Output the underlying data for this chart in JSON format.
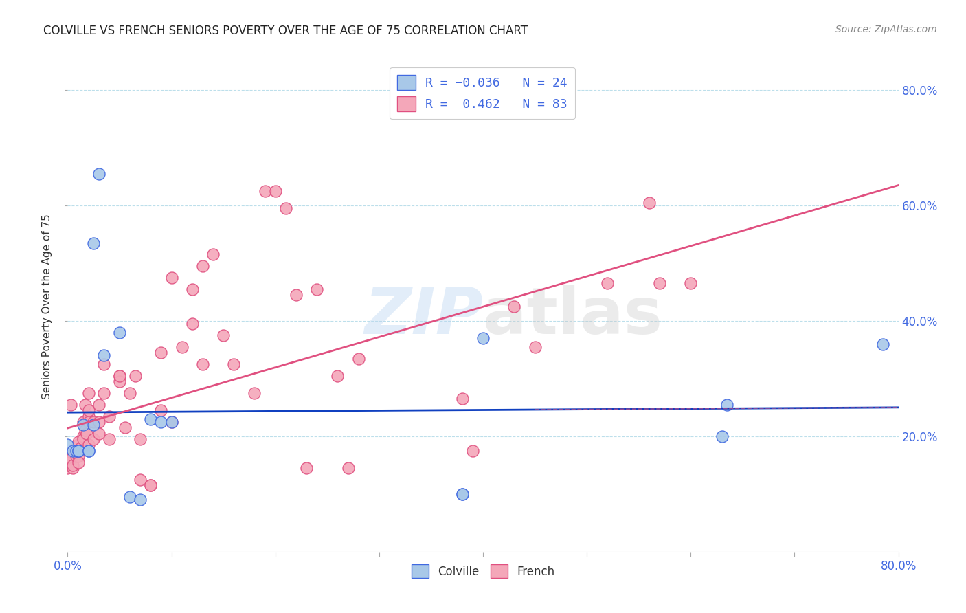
{
  "title": "COLVILLE VS FRENCH SENIORS POVERTY OVER THE AGE OF 75 CORRELATION CHART",
  "source": "Source: ZipAtlas.com",
  "ylabel": "Seniors Poverty Over the Age of 75",
  "colville_color": "#a8c8e8",
  "french_color": "#f4a7b9",
  "colville_edge_color": "#4169e1",
  "french_edge_color": "#e05080",
  "colville_line_color": "#1040c0",
  "french_line_color": "#e05080",
  "colville_R": -0.036,
  "colville_N": 24,
  "french_R": 0.462,
  "french_N": 83,
  "xlim": [
    0.0,
    0.8
  ],
  "ylim": [
    0.0,
    0.85
  ],
  "yticks": [
    0.2,
    0.4,
    0.6,
    0.8
  ],
  "xtick_positions": [
    0.0,
    0.1,
    0.2,
    0.3,
    0.4,
    0.5,
    0.6,
    0.7,
    0.8
  ],
  "colville_x": [
    0.0,
    0.005,
    0.008,
    0.01,
    0.01,
    0.015,
    0.02,
    0.02,
    0.025,
    0.025,
    0.03,
    0.035,
    0.05,
    0.06,
    0.07,
    0.08,
    0.09,
    0.1,
    0.38,
    0.38,
    0.4,
    0.63,
    0.635,
    0.785
  ],
  "colville_y": [
    0.185,
    0.175,
    0.175,
    0.175,
    0.175,
    0.22,
    0.175,
    0.175,
    0.535,
    0.22,
    0.655,
    0.34,
    0.38,
    0.095,
    0.09,
    0.23,
    0.225,
    0.225,
    0.1,
    0.1,
    0.37,
    0.2,
    0.255,
    0.36
  ],
  "french_x": [
    0.0,
    0.0,
    0.0,
    0.0,
    0.0,
    0.0,
    0.0,
    0.0,
    0.003,
    0.003,
    0.005,
    0.005,
    0.007,
    0.007,
    0.008,
    0.008,
    0.009,
    0.01,
    0.01,
    0.01,
    0.01,
    0.01,
    0.012,
    0.015,
    0.015,
    0.015,
    0.017,
    0.017,
    0.018,
    0.02,
    0.02,
    0.02,
    0.02,
    0.02,
    0.025,
    0.025,
    0.03,
    0.03,
    0.03,
    0.035,
    0.035,
    0.04,
    0.04,
    0.05,
    0.05,
    0.05,
    0.055,
    0.06,
    0.065,
    0.07,
    0.07,
    0.08,
    0.08,
    0.09,
    0.09,
    0.1,
    0.1,
    0.11,
    0.12,
    0.12,
    0.13,
    0.13,
    0.14,
    0.15,
    0.16,
    0.18,
    0.19,
    0.2,
    0.21,
    0.22,
    0.23,
    0.24,
    0.26,
    0.27,
    0.28,
    0.38,
    0.39,
    0.43,
    0.45,
    0.52,
    0.56,
    0.57,
    0.6
  ],
  "french_y": [
    0.155,
    0.16,
    0.145,
    0.15,
    0.17,
    0.17,
    0.16,
    0.155,
    0.255,
    0.16,
    0.145,
    0.15,
    0.175,
    0.175,
    0.18,
    0.165,
    0.175,
    0.175,
    0.185,
    0.165,
    0.19,
    0.155,
    0.18,
    0.2,
    0.195,
    0.225,
    0.21,
    0.255,
    0.205,
    0.185,
    0.235,
    0.245,
    0.275,
    0.225,
    0.195,
    0.225,
    0.225,
    0.255,
    0.205,
    0.325,
    0.275,
    0.195,
    0.235,
    0.305,
    0.295,
    0.305,
    0.215,
    0.275,
    0.305,
    0.125,
    0.195,
    0.115,
    0.115,
    0.245,
    0.345,
    0.225,
    0.475,
    0.355,
    0.395,
    0.455,
    0.495,
    0.325,
    0.515,
    0.375,
    0.325,
    0.275,
    0.625,
    0.625,
    0.595,
    0.445,
    0.145,
    0.455,
    0.305,
    0.145,
    0.335,
    0.265,
    0.175,
    0.425,
    0.355,
    0.465,
    0.605,
    0.465,
    0.465
  ]
}
